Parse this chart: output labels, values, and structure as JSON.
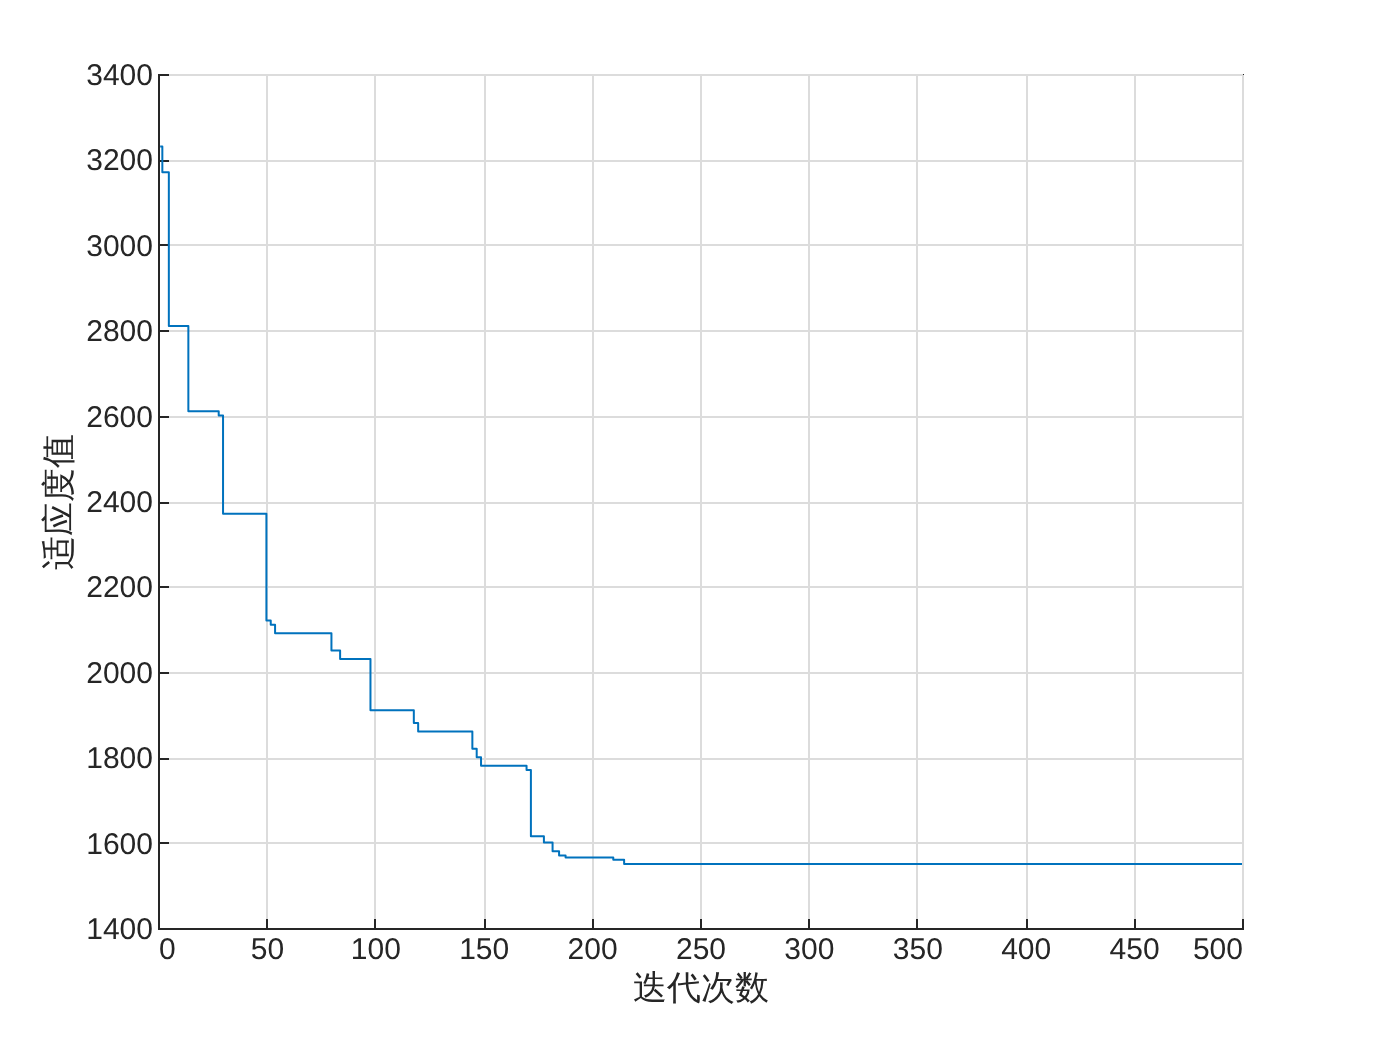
{
  "chart_data": {
    "type": "step",
    "xlabel": "迭代次数",
    "ylabel": "适应度值",
    "x": [
      1,
      2,
      5,
      14,
      28,
      30,
      50,
      52,
      54,
      80,
      84,
      98,
      118,
      120,
      145,
      147,
      149,
      170,
      172,
      178,
      182,
      185,
      188,
      210,
      215,
      500
    ],
    "series": [
      {
        "color": "#0072bd",
        "values": [
          3230,
          3170,
          2810,
          2610,
          2600,
          2370,
          2120,
          2110,
          2090,
          2050,
          2030,
          1910,
          1880,
          1860,
          1820,
          1800,
          1780,
          1770,
          1615,
          1600,
          1580,
          1570,
          1565,
          1560,
          1550,
          1550
        ]
      }
    ],
    "xlim": [
      0,
      500
    ],
    "xticks": [
      0,
      50,
      100,
      150,
      200,
      250,
      300,
      350,
      400,
      450,
      500
    ],
    "ylim": [
      1400,
      3400
    ],
    "yticks": [
      1400,
      1600,
      1800,
      2000,
      2200,
      2400,
      2600,
      2800,
      3000,
      3200,
      3400
    ],
    "grid": true
  }
}
